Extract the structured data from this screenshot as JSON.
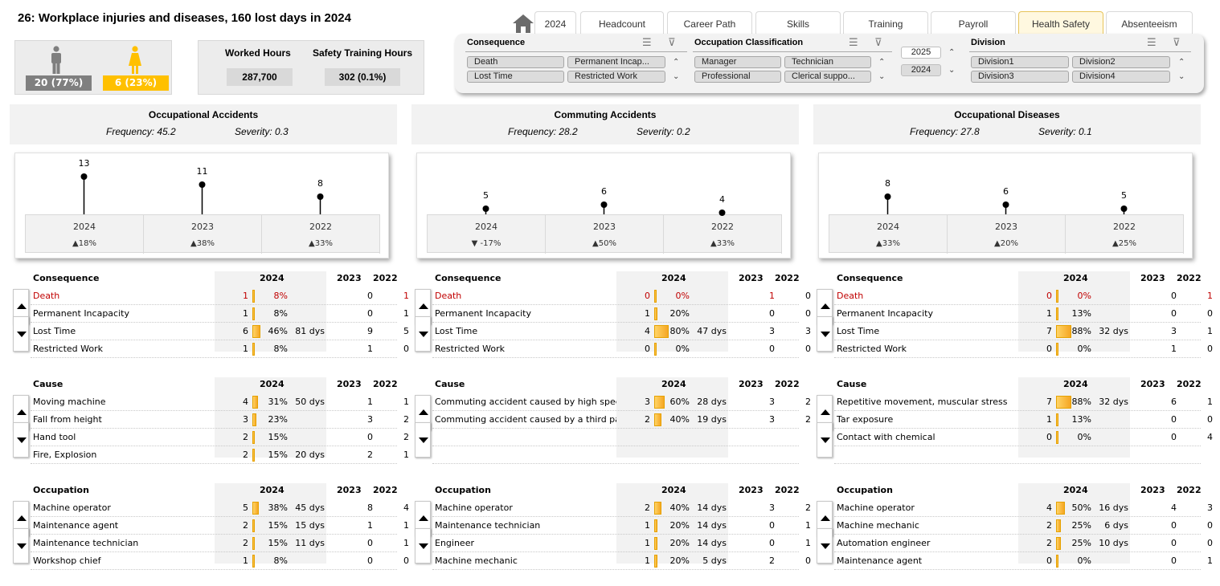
{
  "title": "26: Workplace injuries and diseases, 160 lost days in 2024",
  "gender": {
    "male": "20 (77%)",
    "female": "6 (23%)"
  },
  "hours": {
    "worked_label": "Worked Hours",
    "worked_value": "287,700",
    "training_label": "Safety Training Hours",
    "training_value": "302 (0.1%)"
  },
  "tabs": [
    "2024",
    "Headcount",
    "Career Path",
    "Skills",
    "Training",
    "Payroll",
    "Health  Safety",
    "Absenteeism"
  ],
  "active_tab": "Health  Safety",
  "slicers": {
    "consequence": {
      "title": "Consequence",
      "items": [
        "Death",
        "Permanent Incap...",
        "Lost Time",
        "Restricted Work"
      ]
    },
    "occupation": {
      "title": "Occupation Classification",
      "items": [
        "Manager",
        "Technician",
        "Professional",
        "Clerical suppo..."
      ]
    },
    "year": {
      "items": [
        "2025",
        "2024"
      ]
    },
    "division": {
      "title": "Division",
      "items": [
        "Division1",
        "Division2",
        "Division3",
        "Division4"
      ]
    }
  },
  "sections": [
    {
      "title": "Occupational Accidents",
      "frequency": "Frequency: 45.2",
      "severity": "Severity: 0.3",
      "chart": {
        "values": [
          13,
          11,
          8
        ],
        "years": [
          "2024",
          "2023",
          "2022"
        ],
        "changes": [
          "▲18%",
          "▲38%",
          "▲33%"
        ]
      },
      "consequence": [
        {
          "name": "Death",
          "n": "1",
          "pct": "8%",
          "frac": 0.08,
          "days": "",
          "y2023": "0",
          "y2022": "1",
          "red": true
        },
        {
          "name": "Permanent Incapacity",
          "n": "1",
          "pct": "8%",
          "frac": 0.08,
          "days": "",
          "y2023": "0",
          "y2022": "1"
        },
        {
          "name": "Lost Time",
          "n": "6",
          "pct": "46%",
          "frac": 0.46,
          "days": "81 dys",
          "y2023": "9",
          "y2022": "5"
        },
        {
          "name": "Restricted Work",
          "n": "1",
          "pct": "8%",
          "frac": 0.08,
          "days": "",
          "y2023": "1",
          "y2022": "0"
        }
      ],
      "cause": [
        {
          "name": "Moving machine",
          "n": "4",
          "pct": "31%",
          "frac": 0.31,
          "days": "50 dys",
          "y2023": "1",
          "y2022": "1"
        },
        {
          "name": "Fall from height",
          "n": "3",
          "pct": "23%",
          "frac": 0.23,
          "days": "",
          "y2023": "3",
          "y2022": "2"
        },
        {
          "name": "Hand tool",
          "n": "2",
          "pct": "15%",
          "frac": 0.15,
          "days": "",
          "y2023": "0",
          "y2022": "2"
        },
        {
          "name": "Fire, Explosion",
          "n": "2",
          "pct": "15%",
          "frac": 0.15,
          "days": "20 dys",
          "y2023": "2",
          "y2022": "1"
        }
      ],
      "occupation": [
        {
          "name": "Machine operator",
          "n": "5",
          "pct": "38%",
          "frac": 0.38,
          "days": "45 dys",
          "y2023": "8",
          "y2022": "4"
        },
        {
          "name": "Maintenance agent",
          "n": "2",
          "pct": "15%",
          "frac": 0.15,
          "days": "15 dys",
          "y2023": "1",
          "y2022": "1"
        },
        {
          "name": "Maintenance technician",
          "n": "2",
          "pct": "15%",
          "frac": 0.15,
          "days": "11 dys",
          "y2023": "0",
          "y2022": "1"
        },
        {
          "name": "Workshop chief",
          "n": "1",
          "pct": "8%",
          "frac": 0.08,
          "days": "",
          "y2023": "0",
          "y2022": "0"
        }
      ]
    },
    {
      "title": "Commuting Accidents",
      "frequency": "Frequency: 28.2",
      "severity": "Severity: 0.2",
      "chart": {
        "values": [
          5,
          6,
          4
        ],
        "years": [
          "2024",
          "2023",
          "2022"
        ],
        "changes": [
          "▼ -17%",
          "▲50%",
          "▲33%"
        ]
      },
      "consequence": [
        {
          "name": "Death",
          "n": "0",
          "pct": "0%",
          "frac": 0,
          "days": "",
          "y2023": "1",
          "y2022": "0",
          "red": true,
          "red2023": true
        },
        {
          "name": "Permanent Incapacity",
          "n": "1",
          "pct": "20%",
          "frac": 0.2,
          "days": "",
          "y2023": "0",
          "y2022": "0"
        },
        {
          "name": "Lost Time",
          "n": "4",
          "pct": "80%",
          "frac": 0.8,
          "days": "47 dys",
          "y2023": "3",
          "y2022": "3"
        },
        {
          "name": "Restricted Work",
          "n": "0",
          "pct": "0%",
          "frac": 0,
          "days": "",
          "y2023": "0",
          "y2022": "0"
        }
      ],
      "cause": [
        {
          "name": "Commuting accident caused by high speed",
          "n": "3",
          "pct": "60%",
          "frac": 0.6,
          "days": "28 dys",
          "y2023": "3",
          "y2022": "2"
        },
        {
          "name": "Commuting accident caused by a third party",
          "n": "2",
          "pct": "40%",
          "frac": 0.4,
          "days": "19 dys",
          "y2023": "3",
          "y2022": "2"
        },
        {
          "name": "",
          "n": "",
          "pct": "",
          "frac": 0,
          "days": "",
          "y2023": "",
          "y2022": ""
        },
        {
          "name": "",
          "n": "",
          "pct": "",
          "frac": 0,
          "days": "",
          "y2023": "",
          "y2022": ""
        }
      ],
      "occupation": [
        {
          "name": "Machine operator",
          "n": "2",
          "pct": "40%",
          "frac": 0.4,
          "days": "14 dys",
          "y2023": "3",
          "y2022": "2"
        },
        {
          "name": "Maintenance technician",
          "n": "1",
          "pct": "20%",
          "frac": 0.2,
          "days": "14 dys",
          "y2023": "0",
          "y2022": "1"
        },
        {
          "name": "Engineer",
          "n": "1",
          "pct": "20%",
          "frac": 0.2,
          "days": "14 dys",
          "y2023": "0",
          "y2022": "1"
        },
        {
          "name": "Machine mechanic",
          "n": "1",
          "pct": "20%",
          "frac": 0.2,
          "days": "5 dys",
          "y2023": "2",
          "y2022": "0"
        }
      ]
    },
    {
      "title": "Occupational Diseases",
      "frequency": "Frequency: 27.8",
      "severity": "Severity: 0.1",
      "chart": {
        "values": [
          8,
          6,
          5
        ],
        "years": [
          "2024",
          "2023",
          "2022"
        ],
        "changes": [
          "▲33%",
          "▲20%",
          "▲25%"
        ]
      },
      "consequence": [
        {
          "name": "Death",
          "n": "0",
          "pct": "0%",
          "frac": 0,
          "days": "",
          "y2023": "0",
          "y2022": "1",
          "red": true
        },
        {
          "name": "Permanent Incapacity",
          "n": "1",
          "pct": "13%",
          "frac": 0.13,
          "days": "",
          "y2023": "0",
          "y2022": "0"
        },
        {
          "name": "Lost Time",
          "n": "7",
          "pct": "88%",
          "frac": 0.88,
          "days": "32 dys",
          "y2023": "3",
          "y2022": "1"
        },
        {
          "name": "Restricted Work",
          "n": "0",
          "pct": "0%",
          "frac": 0,
          "days": "",
          "y2023": "1",
          "y2022": "0"
        }
      ],
      "cause": [
        {
          "name": "Repetitive movement, muscular stress",
          "n": "7",
          "pct": "88%",
          "frac": 0.88,
          "days": "32 dys",
          "y2023": "6",
          "y2022": "1"
        },
        {
          "name": "Tar exposure",
          "n": "1",
          "pct": "13%",
          "frac": 0.13,
          "days": "",
          "y2023": "0",
          "y2022": "0"
        },
        {
          "name": "Contact with chemical",
          "n": "0",
          "pct": "0%",
          "frac": 0,
          "days": "",
          "y2023": "0",
          "y2022": "4"
        },
        {
          "name": "",
          "n": "",
          "pct": "",
          "frac": 0,
          "days": "",
          "y2023": "",
          "y2022": ""
        }
      ],
      "occupation": [
        {
          "name": "Machine operator",
          "n": "4",
          "pct": "50%",
          "frac": 0.5,
          "days": "16 dys",
          "y2023": "4",
          "y2022": "3"
        },
        {
          "name": "Machine mechanic",
          "n": "2",
          "pct": "25%",
          "frac": 0.25,
          "days": "6 dys",
          "y2023": "0",
          "y2022": "0"
        },
        {
          "name": "Automation engineer",
          "n": "2",
          "pct": "25%",
          "frac": 0.25,
          "days": "10 dys",
          "y2023": "0",
          "y2022": "0"
        },
        {
          "name": "Maintenance agent",
          "n": "0",
          "pct": "0%",
          "frac": 0,
          "days": "",
          "y2023": "0",
          "y2022": "1"
        }
      ]
    }
  ],
  "table_headers": {
    "consequence": "Consequence",
    "cause": "Cause",
    "occupation": "Occupation",
    "y2024": "2024",
    "y2023": "2023",
    "y2022": "2022"
  },
  "colors": {
    "accent": "#ffc000",
    "male": "#7f7f7f",
    "red": "#c00000"
  }
}
